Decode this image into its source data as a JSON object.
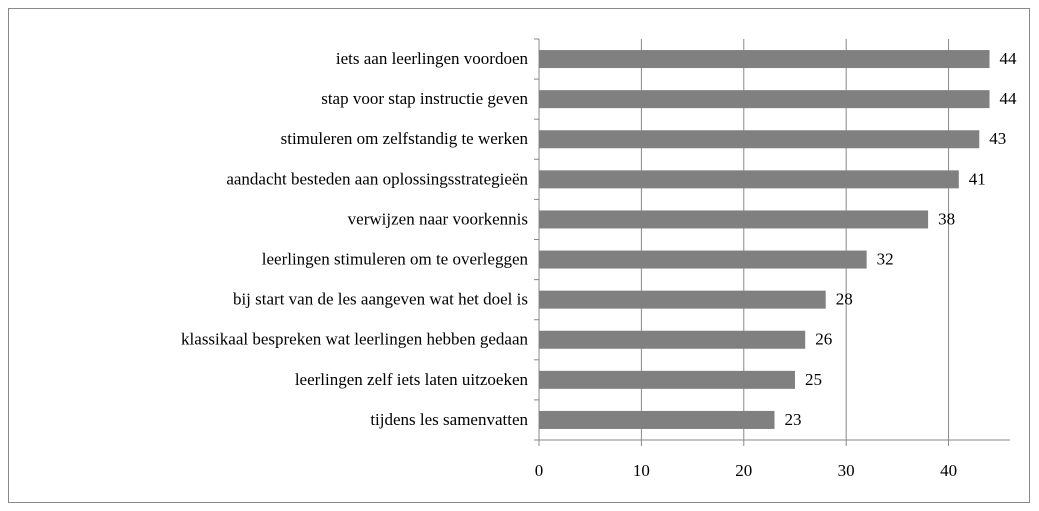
{
  "chart_data": {
    "type": "bar",
    "orientation": "horizontal",
    "categories": [
      "iets aan leerlingen voordoen",
      "stap voor stap instructie geven",
      "stimuleren om zelfstandig te werken",
      "aandacht besteden aan oplossingsstrategieën",
      "verwijzen naar voorkennis",
      "leerlingen stimuleren om te overleggen",
      "bij start van de les aangeven wat het doel is",
      "klassikaal bespreken wat leerlingen hebben gedaan",
      "leerlingen zelf iets laten uitzoeken",
      "tijdens les samenvatten"
    ],
    "values": [
      44,
      44,
      43,
      41,
      38,
      32,
      28,
      26,
      25,
      23
    ],
    "color": "#808080",
    "xlim": [
      0,
      46
    ],
    "xticks": [
      0,
      10,
      20,
      30,
      40
    ],
    "grid": true
  }
}
